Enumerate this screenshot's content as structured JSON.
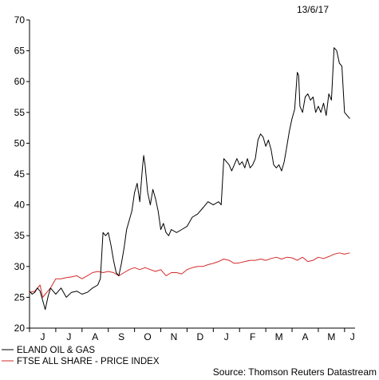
{
  "date_label": "13/6/17",
  "source": "Source: Thomson Reuters Datastream",
  "chart_data": {
    "type": "line",
    "title": "",
    "xlabel": "",
    "ylabel": "",
    "ylim": [
      20,
      70
    ],
    "yticks": [
      20,
      25,
      30,
      35,
      40,
      45,
      50,
      55,
      60,
      65,
      70
    ],
    "xlim": [
      0,
      12.4
    ],
    "month_ticks": [
      {
        "label": "J",
        "x": 0.5
      },
      {
        "label": "J",
        "x": 1.5
      },
      {
        "label": "A",
        "x": 2.5
      },
      {
        "label": "S",
        "x": 3.5
      },
      {
        "label": "O",
        "x": 4.5
      },
      {
        "label": "N",
        "x": 5.5
      },
      {
        "label": "D",
        "x": 6.5
      },
      {
        "label": "J",
        "x": 7.5
      },
      {
        "label": "F",
        "x": 8.5
      },
      {
        "label": "M",
        "x": 9.5
      },
      {
        "label": "A",
        "x": 10.5
      },
      {
        "label": "M",
        "x": 11.5
      },
      {
        "label": "J",
        "x": 12.3
      }
    ],
    "grid": false,
    "legend_position": "bottom-left",
    "series": [
      {
        "name": "ELAND OIL & GAS",
        "color": "#000000",
        "points": [
          [
            0.0,
            26.0
          ],
          [
            0.1,
            25.5
          ],
          [
            0.2,
            25.8
          ],
          [
            0.3,
            26.5
          ],
          [
            0.4,
            26.0
          ],
          [
            0.5,
            24.5
          ],
          [
            0.6,
            23.0
          ],
          [
            0.7,
            25.0
          ],
          [
            0.8,
            26.5
          ],
          [
            0.9,
            26.0
          ],
          [
            1.0,
            25.5
          ],
          [
            1.2,
            26.5
          ],
          [
            1.4,
            25.0
          ],
          [
            1.6,
            25.8
          ],
          [
            1.8,
            26.0
          ],
          [
            2.0,
            25.5
          ],
          [
            2.2,
            25.8
          ],
          [
            2.4,
            26.5
          ],
          [
            2.6,
            27.0
          ],
          [
            2.7,
            28.0
          ],
          [
            2.8,
            35.5
          ],
          [
            2.9,
            35.0
          ],
          [
            3.0,
            35.5
          ],
          [
            3.1,
            33.5
          ],
          [
            3.2,
            31.0
          ],
          [
            3.3,
            29.0
          ],
          [
            3.4,
            28.5
          ],
          [
            3.5,
            30.5
          ],
          [
            3.6,
            33.0
          ],
          [
            3.7,
            36.0
          ],
          [
            3.8,
            37.5
          ],
          [
            3.9,
            39.0
          ],
          [
            4.0,
            42.0
          ],
          [
            4.1,
            43.5
          ],
          [
            4.2,
            40.5
          ],
          [
            4.3,
            46.0
          ],
          [
            4.35,
            48.0
          ],
          [
            4.4,
            46.5
          ],
          [
            4.5,
            42.0
          ],
          [
            4.6,
            40.0
          ],
          [
            4.7,
            42.5
          ],
          [
            4.8,
            41.0
          ],
          [
            4.9,
            39.0
          ],
          [
            5.0,
            36.0
          ],
          [
            5.1,
            37.0
          ],
          [
            5.2,
            35.5
          ],
          [
            5.3,
            35.0
          ],
          [
            5.4,
            36.0
          ],
          [
            5.6,
            35.5
          ],
          [
            5.8,
            36.0
          ],
          [
            6.0,
            36.5
          ],
          [
            6.2,
            38.0
          ],
          [
            6.4,
            38.5
          ],
          [
            6.6,
            39.5
          ],
          [
            6.8,
            40.5
          ],
          [
            7.0,
            40.0
          ],
          [
            7.2,
            40.5
          ],
          [
            7.3,
            40.0
          ],
          [
            7.4,
            47.5
          ],
          [
            7.5,
            47.0
          ],
          [
            7.6,
            46.5
          ],
          [
            7.7,
            45.5
          ],
          [
            7.8,
            46.5
          ],
          [
            7.9,
            47.5
          ],
          [
            8.0,
            46.5
          ],
          [
            8.1,
            47.0
          ],
          [
            8.2,
            46.0
          ],
          [
            8.3,
            47.5
          ],
          [
            8.4,
            46.0
          ],
          [
            8.5,
            46.5
          ],
          [
            8.6,
            47.5
          ],
          [
            8.7,
            50.5
          ],
          [
            8.8,
            51.5
          ],
          [
            8.9,
            51.0
          ],
          [
            9.0,
            49.5
          ],
          [
            9.1,
            50.5
          ],
          [
            9.2,
            49.0
          ],
          [
            9.3,
            46.5
          ],
          [
            9.4,
            46.0
          ],
          [
            9.5,
            46.5
          ],
          [
            9.6,
            45.5
          ],
          [
            9.7,
            47.0
          ],
          [
            9.8,
            49.5
          ],
          [
            9.9,
            52.0
          ],
          [
            10.0,
            54.0
          ],
          [
            10.1,
            55.5
          ],
          [
            10.2,
            61.5
          ],
          [
            10.25,
            61.0
          ],
          [
            10.3,
            56.0
          ],
          [
            10.4,
            55.0
          ],
          [
            10.5,
            57.5
          ],
          [
            10.6,
            58.0
          ],
          [
            10.7,
            57.0
          ],
          [
            10.8,
            57.5
          ],
          [
            10.9,
            55.0
          ],
          [
            11.0,
            56.0
          ],
          [
            11.1,
            55.0
          ],
          [
            11.2,
            56.5
          ],
          [
            11.3,
            54.5
          ],
          [
            11.4,
            58.0
          ],
          [
            11.5,
            57.0
          ],
          [
            11.6,
            65.5
          ],
          [
            11.7,
            65.0
          ],
          [
            11.8,
            63.0
          ],
          [
            11.9,
            62.5
          ],
          [
            12.0,
            55.0
          ],
          [
            12.1,
            54.5
          ],
          [
            12.2,
            54.0
          ]
        ]
      },
      {
        "name": "FTSE ALL SHARE - PRICE INDEX",
        "color": "#d42a2a",
        "points": [
          [
            0.0,
            25.8
          ],
          [
            0.2,
            26.0
          ],
          [
            0.4,
            27.0
          ],
          [
            0.5,
            25.0
          ],
          [
            0.6,
            25.5
          ],
          [
            0.8,
            26.5
          ],
          [
            1.0,
            28.0
          ],
          [
            1.2,
            28.0
          ],
          [
            1.4,
            28.2
          ],
          [
            1.6,
            28.3
          ],
          [
            1.8,
            28.5
          ],
          [
            2.0,
            28.0
          ],
          [
            2.2,
            28.5
          ],
          [
            2.4,
            29.0
          ],
          [
            2.6,
            29.2
          ],
          [
            2.8,
            29.0
          ],
          [
            3.0,
            29.2
          ],
          [
            3.2,
            29.0
          ],
          [
            3.4,
            28.5
          ],
          [
            3.6,
            29.0
          ],
          [
            3.8,
            29.5
          ],
          [
            4.0,
            29.8
          ],
          [
            4.2,
            29.5
          ],
          [
            4.4,
            29.8
          ],
          [
            4.6,
            29.5
          ],
          [
            4.8,
            29.2
          ],
          [
            5.0,
            29.5
          ],
          [
            5.2,
            28.5
          ],
          [
            5.4,
            29.0
          ],
          [
            5.6,
            29.0
          ],
          [
            5.8,
            28.8
          ],
          [
            6.0,
            29.5
          ],
          [
            6.2,
            29.8
          ],
          [
            6.4,
            30.0
          ],
          [
            6.6,
            30.0
          ],
          [
            6.8,
            30.3
          ],
          [
            7.0,
            30.5
          ],
          [
            7.2,
            30.8
          ],
          [
            7.4,
            31.2
          ],
          [
            7.6,
            31.0
          ],
          [
            7.8,
            30.5
          ],
          [
            8.0,
            30.6
          ],
          [
            8.2,
            30.8
          ],
          [
            8.4,
            31.0
          ],
          [
            8.6,
            31.0
          ],
          [
            8.8,
            31.2
          ],
          [
            9.0,
            31.0
          ],
          [
            9.2,
            31.3
          ],
          [
            9.4,
            31.5
          ],
          [
            9.6,
            31.2
          ],
          [
            9.8,
            31.5
          ],
          [
            10.0,
            31.4
          ],
          [
            10.2,
            31.0
          ],
          [
            10.4,
            31.5
          ],
          [
            10.6,
            30.8
          ],
          [
            10.8,
            31.0
          ],
          [
            11.0,
            31.5
          ],
          [
            11.2,
            31.3
          ],
          [
            11.4,
            31.6
          ],
          [
            11.6,
            32.0
          ],
          [
            11.8,
            32.2
          ],
          [
            12.0,
            32.0
          ],
          [
            12.2,
            32.2
          ]
        ]
      }
    ]
  }
}
